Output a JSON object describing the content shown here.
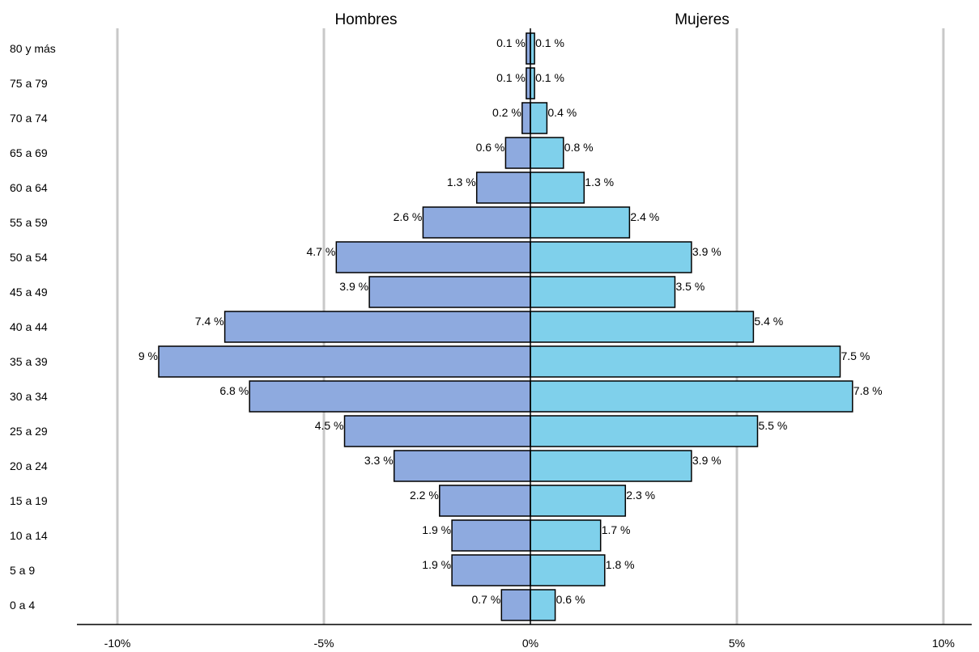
{
  "chart_data": {
    "type": "bar",
    "orientation": "horizontal-population-pyramid",
    "categories": [
      "0 a 4",
      "5 a 9",
      "10 a 14",
      "15 a 19",
      "20 a 24",
      "25 a 29",
      "30 a 34",
      "35 a 39",
      "40 a 44",
      "45 a 49",
      "50 a 54",
      "55 a 59",
      "60 a 64",
      "65 a 69",
      "70 a 74",
      "75 a 79",
      "80 y más"
    ],
    "series": [
      {
        "name": "Hombres",
        "values": [
          0.7,
          1.9,
          1.9,
          2.2,
          3.3,
          4.5,
          6.8,
          9,
          7.4,
          3.9,
          4.7,
          2.6,
          1.3,
          0.6,
          0.2,
          0.1,
          0.1
        ],
        "labels": [
          "0.7 %",
          "1.9 %",
          "1.9 %",
          "2.2 %",
          "3.3 %",
          "4.5 %",
          "6.8 %",
          "9 %",
          "7.4 %",
          "3.9 %",
          "4.7 %",
          "2.6 %",
          "1.3 %",
          "0.6 %",
          "0.2 %",
          "0.1 %",
          "0.1 %"
        ]
      },
      {
        "name": "Mujeres",
        "values": [
          0.6,
          1.8,
          1.7,
          2.3,
          3.9,
          5.5,
          7.8,
          7.5,
          5.4,
          3.5,
          3.9,
          2.4,
          1.3,
          0.8,
          0.4,
          0.1,
          0.1
        ],
        "labels": [
          "0.6 %",
          "1.8 %",
          "1.7 %",
          "2.3 %",
          "3.9 %",
          "5.5 %",
          "7.8 %",
          "7.5 %",
          "5.4 %",
          "3.5 %",
          "3.9 %",
          "2.4 %",
          "1.3 %",
          "0.8 %",
          "0.4 %",
          "0.1 %",
          "0.1 %"
        ]
      }
    ],
    "xlim": [
      -10,
      10
    ],
    "x_ticks": [
      -10,
      -5,
      0,
      5,
      10
    ],
    "x_tick_labels": [
      "-10%",
      "-5%",
      "0%",
      "5%",
      "10%"
    ],
    "grid": true,
    "colors": {
      "Hombres": "#8eaadf",
      "Mujeres": "#7fd0eb",
      "grid": "#c8c8c8"
    }
  }
}
